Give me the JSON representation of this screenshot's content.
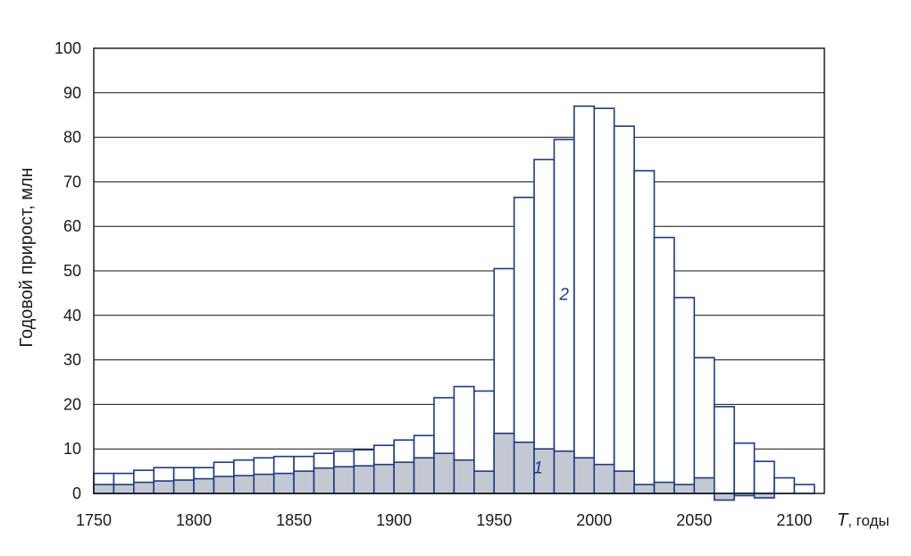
{
  "chart_data": {
    "type": "bar",
    "ylabel": "Годовой прирост, млн",
    "xlabel": {
      "symbol": "T",
      "suffix": ", годы"
    },
    "xlim": [
      1750,
      2115
    ],
    "ylim": [
      0,
      100
    ],
    "x_ticks": [
      "1750",
      "1800",
      "1850",
      "1900",
      "1950",
      "2000",
      "2050",
      "2100"
    ],
    "y_ticks": [
      "0",
      "10",
      "20",
      "30",
      "40",
      "50",
      "60",
      "70",
      "80",
      "90",
      "100"
    ],
    "grid": "horizontal",
    "bin_width": 10,
    "bin_starts": [
      1750,
      1760,
      1770,
      1780,
      1790,
      1800,
      1810,
      1820,
      1830,
      1840,
      1850,
      1860,
      1870,
      1880,
      1890,
      1900,
      1910,
      1920,
      1930,
      1940,
      1950,
      1960,
      1970,
      1980,
      1990,
      2000,
      2010,
      2020,
      2030,
      2040,
      2050,
      2060,
      2070,
      2080,
      2090,
      2100
    ],
    "series": [
      {
        "name": "2",
        "fill": "#ffffff",
        "stroke": "#1a3a8a",
        "values": [
          4.5,
          4.5,
          5.2,
          5.8,
          5.8,
          5.8,
          7,
          7.5,
          8,
          8.3,
          8.3,
          9,
          9.5,
          9.8,
          10.8,
          12,
          13,
          21.5,
          24,
          23,
          50.5,
          66.5,
          75,
          79.5,
          87,
          86.5,
          82.5,
          72.5,
          57.5,
          44,
          30.5,
          19.5,
          11.3,
          7.2,
          3.5,
          2
        ]
      },
      {
        "name": "1",
        "fill": "#c4c8d0",
        "stroke": "#1a3a8a",
        "values": [
          2,
          2,
          2.5,
          2.8,
          3,
          3.3,
          3.8,
          4,
          4.3,
          4.5,
          5,
          5.7,
          6,
          6.2,
          6.5,
          7,
          8,
          9,
          7.5,
          5,
          13.5,
          11.5,
          10,
          9.5,
          8,
          6.5,
          5,
          2,
          2.5,
          2,
          3.5,
          -1.5,
          -0.5,
          -1,
          0,
          0
        ]
      }
    ],
    "series_label_positions": [
      {
        "label": "2",
        "x": 1985,
        "y": 43.5
      },
      {
        "label": "1",
        "x": 1972,
        "y": 4.5
      }
    ]
  }
}
